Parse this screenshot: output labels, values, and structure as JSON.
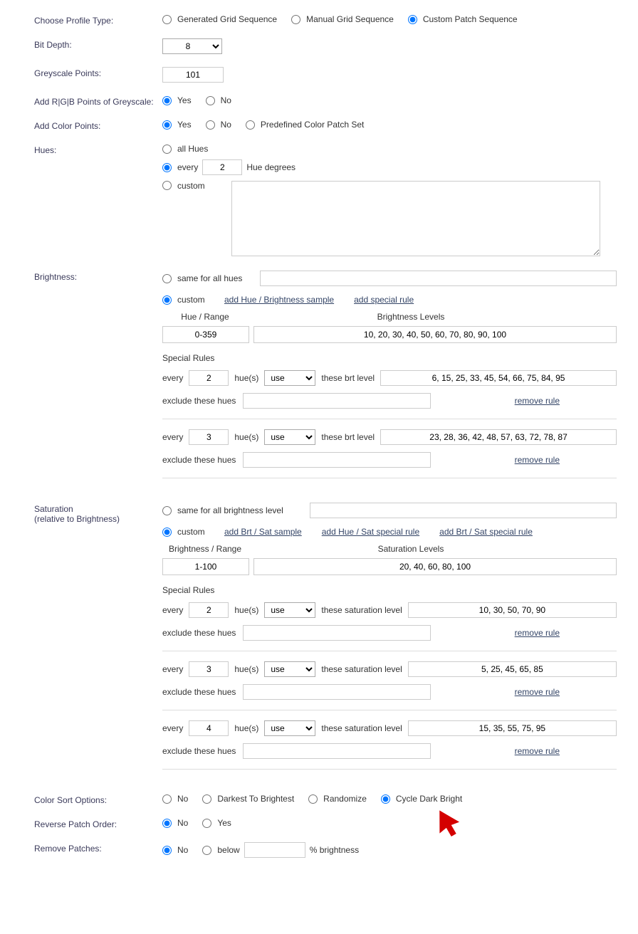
{
  "labels": {
    "profileType": "Choose Profile Type:",
    "bitDepth": "Bit Depth:",
    "greyscalePoints": "Greyscale Points:",
    "addRgb": "Add R|G|B Points of Greyscale:",
    "addColor": "Add Color Points:",
    "hues": "Hues:",
    "brightness": "Brightness:",
    "saturation": "Saturation",
    "saturationSub": "(relative to Brightness)",
    "colorSort": "Color Sort Options:",
    "reverseOrder": "Reverse Patch Order:",
    "removePatches": "Remove Patches:"
  },
  "profileType": {
    "opt1": "Generated Grid Sequence",
    "opt2": "Manual Grid Sequence",
    "opt3": "Custom Patch Sequence",
    "selected": 3
  },
  "bitDepth": {
    "value": "8"
  },
  "greyscalePoints": {
    "value": "101"
  },
  "addRgb": {
    "yes": "Yes",
    "no": "No",
    "selected": "yes"
  },
  "addColor": {
    "yes": "Yes",
    "no": "No",
    "predef": "Predefined Color Patch Set",
    "selected": "yes"
  },
  "huesSec": {
    "all": "all Hues",
    "everyPrefix": "every",
    "everySuffix": "Hue degrees",
    "everyVal": "2",
    "custom": "custom",
    "selected": "every"
  },
  "brightnessSec": {
    "sameLabel": "same for all hues",
    "customLabel": "custom",
    "selected": "custom",
    "linkAdd": "add Hue / Brightness sample",
    "linkSpecial": "add special rule",
    "headHue": "Hue / Range",
    "headBrt": "Brightness Levels",
    "rangeVal": "0-359",
    "levelsVal": "10, 20, 30, 40, 50, 60, 70, 80, 90, 100",
    "specialRules": "Special Rules",
    "everyTxt": "every",
    "hueTxt": "hue(s)",
    "useOpt": "use",
    "theseBrt": "these brt level",
    "excludeTxt": "exclude these hues",
    "removeRule": "remove rule",
    "rules": [
      {
        "every": "2",
        "levels": "6, 15, 25, 33, 45, 54, 66, 75, 84, 95"
      },
      {
        "every": "3",
        "levels": "23, 28, 36, 42, 48, 57, 63, 72, 78, 87"
      }
    ]
  },
  "saturationSec": {
    "sameLabel": "same for all brightness level",
    "customLabel": "custom",
    "selected": "custom",
    "linkAdd": "add Brt / Sat sample",
    "linkHue": "add Hue / Sat special rule",
    "linkBrt": "add Brt / Sat special rule",
    "headBrt": "Brightness / Range",
    "headSat": "Saturation Levels",
    "rangeVal": "1-100",
    "levelsVal": "20, 40, 60, 80, 100",
    "specialRules": "Special Rules",
    "everyTxt": "every",
    "hueTxt": "hue(s)",
    "useOpt": "use",
    "theseSat": "these saturation level",
    "excludeTxt": "exclude these hues",
    "removeRule": "remove rule",
    "rules": [
      {
        "every": "2",
        "levels": "10, 30, 50, 70, 90"
      },
      {
        "every": "3",
        "levels": "5, 25, 45, 65, 85"
      },
      {
        "every": "4",
        "levels": "15, 35, 55, 75, 95"
      }
    ]
  },
  "colorSort": {
    "no": "No",
    "d2b": "Darkest To Brightest",
    "rand": "Randomize",
    "cycle": "Cycle Dark Bright",
    "selected": "cycle"
  },
  "reverseOrder": {
    "no": "No",
    "yes": "Yes",
    "selected": "no"
  },
  "removePatchesSec": {
    "no": "No",
    "below": "below",
    "pctBrt": "% brightness",
    "selected": "no"
  }
}
